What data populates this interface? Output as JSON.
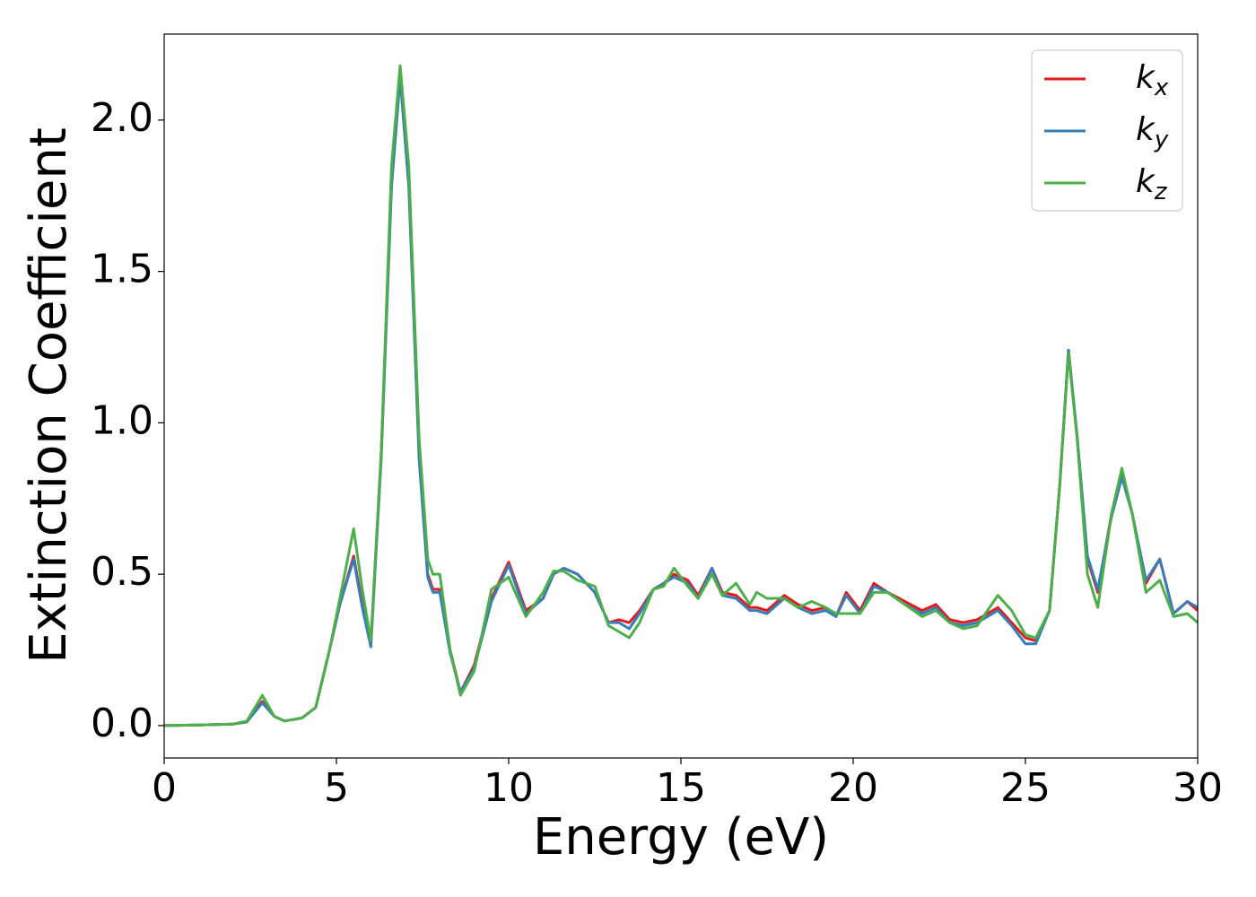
{
  "chart_data": {
    "type": "line",
    "x_label": "Energy (eV)",
    "y_label": "Extinction Coefficient",
    "xlim": [
      0,
      30
    ],
    "ylim": [
      -0.107,
      2.284
    ],
    "xticks": [
      0,
      5,
      10,
      15,
      20,
      25,
      30
    ],
    "yticks": [
      {
        "value": 0,
        "label": "0.0"
      },
      {
        "value": 0.5,
        "label": "0.5"
      },
      {
        "value": 1,
        "label": "1.0"
      },
      {
        "value": 1.5,
        "label": "1.5"
      },
      {
        "value": 2,
        "label": "2.0"
      }
    ],
    "legend": "upper right",
    "x": [
      0,
      1,
      2,
      2.4,
      2.85,
      3.2,
      3.5,
      4.0,
      4.4,
      4.8,
      5.1,
      5.5,
      5.75,
      6.0,
      6.3,
      6.6,
      6.85,
      7.1,
      7.4,
      7.65,
      7.8,
      8.0,
      8.3,
      8.6,
      9.0,
      9.5,
      10.0,
      10.5,
      11.0,
      11.3,
      11.6,
      12.0,
      12.5,
      12.9,
      13.2,
      13.5,
      13.8,
      14.2,
      14.5,
      14.8,
      15.2,
      15.5,
      15.9,
      16.2,
      16.6,
      17.0,
      17.2,
      17.5,
      18.0,
      18.4,
      18.8,
      19.2,
      19.5,
      19.8,
      20.2,
      20.6,
      21.0,
      21.5,
      22.0,
      22.4,
      22.8,
      23.2,
      23.6,
      24.2,
      24.6,
      25.0,
      25.3,
      25.7,
      26.0,
      26.25,
      26.5,
      26.8,
      27.1,
      27.5,
      27.8,
      28.1,
      28.5,
      28.9,
      29.3,
      29.7,
      30.0
    ],
    "series": [
      {
        "name": "kx",
        "color": "#e41a1c",
        "values": [
          0,
          0.002,
          0.005,
          0.012,
          0.08,
          0.03,
          0.015,
          0.025,
          0.06,
          0.25,
          0.4,
          0.56,
          0.4,
          0.27,
          0.9,
          1.8,
          2.15,
          1.8,
          0.9,
          0.5,
          0.45,
          0.45,
          0.25,
          0.11,
          0.2,
          0.42,
          0.54,
          0.38,
          0.42,
          0.5,
          0.52,
          0.5,
          0.44,
          0.34,
          0.35,
          0.34,
          0.38,
          0.45,
          0.47,
          0.5,
          0.48,
          0.43,
          0.52,
          0.44,
          0.43,
          0.39,
          0.39,
          0.38,
          0.43,
          0.4,
          0.38,
          0.39,
          0.36,
          0.44,
          0.38,
          0.47,
          0.44,
          0.41,
          0.38,
          0.4,
          0.35,
          0.34,
          0.35,
          0.39,
          0.34,
          0.29,
          0.28,
          0.38,
          0.8,
          1.24,
          0.95,
          0.55,
          0.44,
          0.7,
          0.83,
          0.7,
          0.47,
          0.55,
          0.37,
          0.41,
          0.38
        ]
      },
      {
        "name": "ky",
        "color": "#377eb8",
        "values": [
          0,
          0.002,
          0.005,
          0.012,
          0.075,
          0.03,
          0.015,
          0.025,
          0.06,
          0.25,
          0.4,
          0.55,
          0.39,
          0.26,
          0.88,
          1.78,
          2.14,
          1.78,
          0.88,
          0.49,
          0.44,
          0.44,
          0.24,
          0.11,
          0.19,
          0.41,
          0.53,
          0.37,
          0.42,
          0.5,
          0.52,
          0.5,
          0.44,
          0.34,
          0.34,
          0.32,
          0.37,
          0.45,
          0.47,
          0.49,
          0.47,
          0.42,
          0.52,
          0.43,
          0.42,
          0.38,
          0.38,
          0.37,
          0.42,
          0.39,
          0.37,
          0.38,
          0.36,
          0.43,
          0.37,
          0.46,
          0.44,
          0.4,
          0.37,
          0.39,
          0.34,
          0.33,
          0.34,
          0.38,
          0.33,
          0.27,
          0.27,
          0.38,
          0.8,
          1.24,
          0.96,
          0.56,
          0.45,
          0.69,
          0.82,
          0.7,
          0.48,
          0.55,
          0.37,
          0.41,
          0.39
        ]
      },
      {
        "name": "kz",
        "color": "#4daf4a",
        "values": [
          0,
          0.002,
          0.005,
          0.015,
          0.1,
          0.03,
          0.015,
          0.025,
          0.06,
          0.25,
          0.42,
          0.65,
          0.45,
          0.28,
          0.9,
          1.85,
          2.18,
          1.85,
          0.95,
          0.55,
          0.5,
          0.5,
          0.25,
          0.1,
          0.18,
          0.45,
          0.49,
          0.36,
          0.44,
          0.51,
          0.51,
          0.48,
          0.46,
          0.33,
          0.31,
          0.29,
          0.34,
          0.45,
          0.46,
          0.52,
          0.46,
          0.42,
          0.5,
          0.43,
          0.47,
          0.4,
          0.44,
          0.42,
          0.42,
          0.39,
          0.41,
          0.39,
          0.37,
          0.37,
          0.37,
          0.44,
          0.44,
          0.4,
          0.36,
          0.38,
          0.34,
          0.32,
          0.33,
          0.43,
          0.38,
          0.3,
          0.29,
          0.38,
          0.8,
          1.23,
          0.95,
          0.5,
          0.39,
          0.7,
          0.85,
          0.7,
          0.44,
          0.48,
          0.36,
          0.37,
          0.34
        ]
      }
    ]
  }
}
